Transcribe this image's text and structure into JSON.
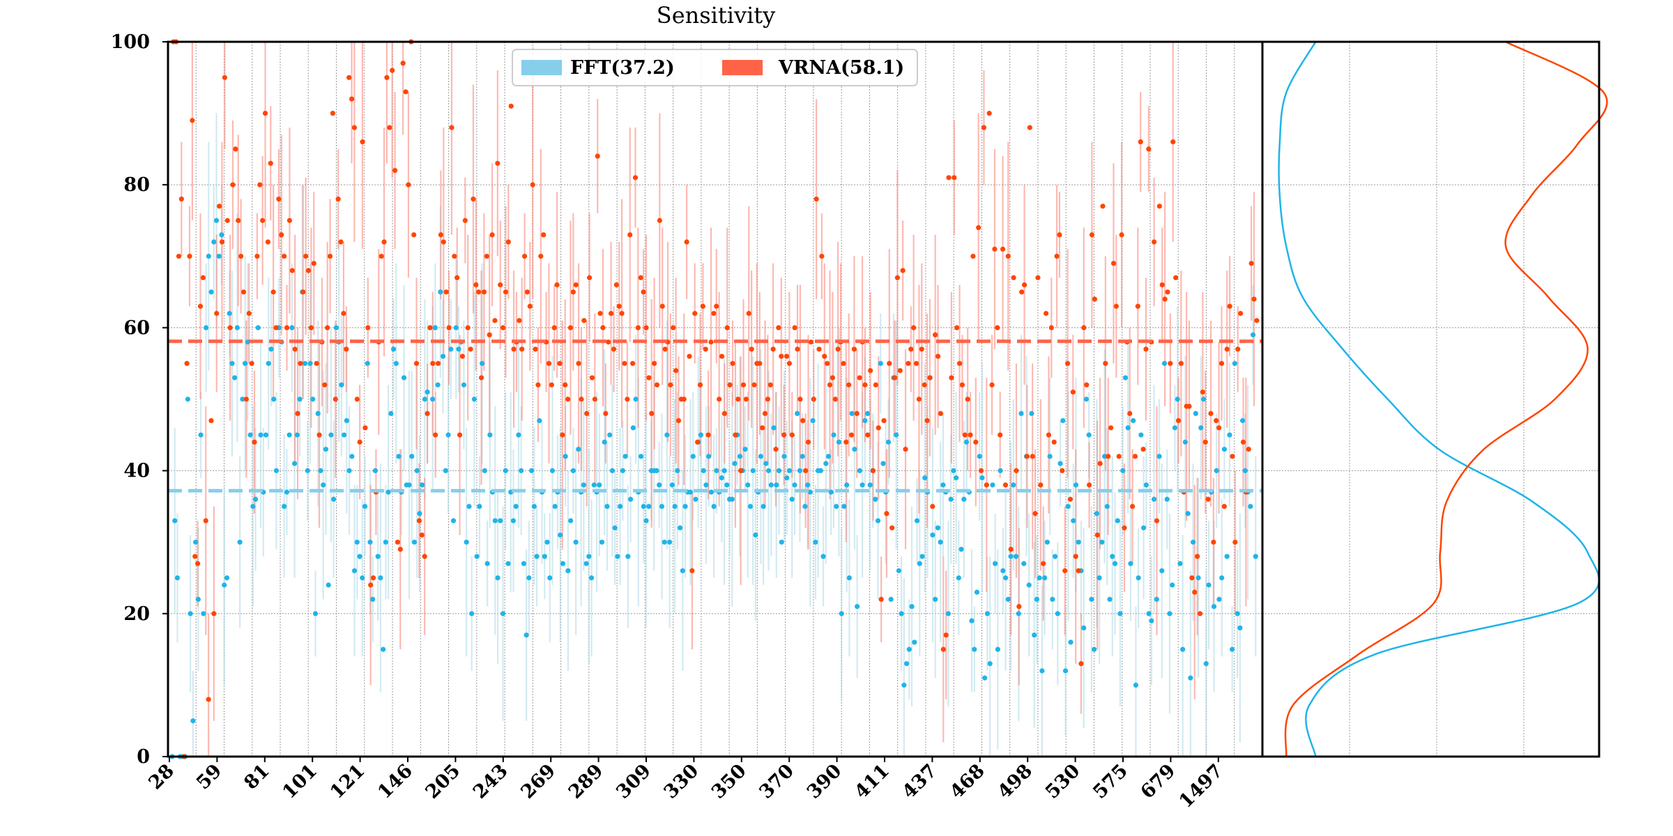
{
  "chart_data": {
    "type": "scatter",
    "title": "Sensitivity",
    "xlabel": "",
    "ylabel": "",
    "ylim": [
      0,
      100
    ],
    "yticks": [
      0,
      20,
      40,
      60,
      80,
      100
    ],
    "x_tick_labels": [
      "28",
      "59",
      "81",
      "101",
      "121",
      "146",
      "205",
      "243",
      "269",
      "289",
      "309",
      "330",
      "350",
      "370",
      "390",
      "411",
      "437",
      "468",
      "498",
      "530",
      "575",
      "679",
      "1497"
    ],
    "grid": true,
    "legend_position": "top-center",
    "series": [
      {
        "name": "FFT(37.2)",
        "color": "#1fb4e8",
        "legend_color": "#87ceeb",
        "mean": 37.2,
        "profile": [
          0,
          33,
          25,
          0,
          0,
          0,
          50,
          20,
          5,
          30,
          22,
          45,
          20,
          60,
          70,
          65,
          72,
          75,
          70,
          73,
          24,
          25,
          62,
          55,
          53,
          60,
          30,
          50,
          55,
          58,
          45,
          35,
          36,
          60,
          45,
          37,
          45,
          55,
          57,
          50,
          40,
          60,
          58,
          35,
          37,
          45,
          60,
          41,
          45,
          50,
          65,
          55,
          40,
          55,
          50,
          20,
          48,
          40,
          38,
          43,
          24,
          45,
          36,
          60,
          58,
          52,
          45,
          47,
          40,
          42,
          26,
          30,
          28,
          25,
          35,
          55,
          30,
          22,
          40,
          28,
          25,
          15,
          30,
          37,
          48,
          57,
          55,
          42,
          37,
          53,
          38,
          38,
          42,
          30,
          40,
          34,
          38,
          50,
          51,
          60,
          50,
          60,
          52,
          65,
          56,
          40,
          45,
          57,
          33,
          60,
          57,
          58,
          52,
          30,
          35,
          20,
          50,
          28,
          35,
          55,
          40,
          27,
          45,
          37,
          33,
          25,
          33,
          20,
          40,
          27,
          37,
          33,
          35,
          45,
          40,
          27,
          17,
          25,
          40,
          35,
          28,
          47,
          37,
          28,
          30,
          25,
          40,
          35,
          37,
          31,
          27,
          42,
          26,
          33,
          40,
          30,
          43,
          37,
          38,
          27,
          28,
          25,
          38,
          37,
          38,
          30,
          44,
          35,
          45,
          40,
          32,
          28,
          35,
          40,
          42,
          28,
          36,
          46,
          50,
          37,
          42,
          35,
          33,
          35,
          40,
          40,
          40,
          38,
          35,
          30,
          45,
          30,
          38,
          35,
          40,
          32,
          26,
          35,
          37,
          37,
          42,
          36,
          44,
          45,
          40,
          38,
          42,
          37,
          35,
          40,
          37,
          39,
          40,
          38,
          36,
          36,
          41,
          45,
          42,
          40,
          43,
          38,
          35,
          40,
          31,
          37,
          42,
          35,
          41,
          40,
          38,
          46,
          38,
          40,
          30,
          42,
          39,
          40,
          36,
          38,
          48,
          40,
          42,
          35,
          38,
          37,
          47,
          30,
          40,
          40,
          28,
          41,
          42,
          37,
          45,
          35,
          44,
          20,
          35,
          38,
          25,
          48,
          43,
          21,
          40,
          38,
          47,
          48,
          38,
          40,
          36,
          33,
          55,
          41,
          37,
          44,
          22,
          53,
          45,
          26,
          20,
          10,
          13,
          15,
          21,
          16,
          33,
          27,
          28,
          39,
          37,
          53,
          31,
          22,
          32,
          30,
          38,
          37,
          20,
          36,
          40,
          39,
          25,
          29,
          36,
          44,
          37,
          19,
          15,
          23,
          42,
          39,
          11,
          20,
          13,
          38,
          27,
          15,
          40,
          26,
          25,
          22,
          28,
          38,
          28,
          20,
          48,
          27,
          42,
          24,
          48,
          17,
          22,
          25,
          12,
          25,
          30,
          42,
          22,
          28,
          20,
          41,
          47,
          12,
          35,
          16,
          33,
          38,
          30,
          26,
          18,
          50,
          45,
          22,
          15,
          34,
          25,
          30,
          42,
          35,
          22,
          28,
          27,
          33,
          20,
          40,
          53,
          46,
          27,
          47,
          10,
          25,
          45,
          32,
          38,
          20,
          19,
          36,
          22,
          42,
          26,
          55,
          36,
          20,
          24,
          46,
          50,
          27,
          15,
          44,
          34,
          11,
          30,
          48,
          25,
          46,
          50,
          13,
          24,
          37,
          21,
          40,
          22,
          25,
          43,
          28,
          45,
          15,
          55,
          20,
          18,
          47,
          40,
          37,
          35,
          59,
          28
        ]
      },
      {
        "name": "VRNA(58.1)",
        "color": "#ff4500",
        "legend_color": "#ff6347",
        "mean": 58.1,
        "profile": [
          100,
          100,
          70,
          78,
          0,
          55,
          70,
          89,
          28,
          27,
          63,
          67,
          33,
          8,
          47,
          20,
          62,
          77,
          72,
          95,
          75,
          60,
          80,
          85,
          75,
          70,
          65,
          50,
          62,
          55,
          44,
          70,
          80,
          75,
          90,
          72,
          83,
          65,
          60,
          78,
          73,
          70,
          60,
          75,
          68,
          57,
          48,
          55,
          65,
          70,
          68,
          60,
          69,
          55,
          45,
          58,
          52,
          60,
          70,
          90,
          50,
          78,
          72,
          62,
          57,
          95,
          92,
          88,
          50,
          44,
          86,
          46,
          60,
          24,
          25,
          37,
          58,
          70,
          72,
          95,
          88,
          96,
          82,
          30,
          29,
          97,
          93,
          80,
          100,
          73,
          55,
          33,
          31,
          28,
          48,
          60,
          55,
          45,
          55,
          73,
          72,
          65,
          60,
          88,
          70,
          67,
          45,
          56,
          75,
          60,
          57,
          78,
          66,
          65,
          53,
          65,
          70,
          59,
          73,
          61,
          83,
          66,
          60,
          65,
          72,
          91,
          57,
          58,
          61,
          57,
          70,
          65,
          63,
          80,
          57,
          52,
          70,
          73,
          58,
          55,
          52,
          60,
          66,
          55,
          45,
          52,
          50,
          60,
          65,
          66,
          55,
          50,
          61,
          48,
          67,
          53,
          50,
          84,
          62,
          60,
          48,
          58,
          62,
          57,
          66,
          63,
          62,
          55,
          50,
          73,
          55,
          81,
          60,
          67,
          65,
          60,
          53,
          48,
          55,
          52,
          75,
          63,
          57,
          58,
          52,
          60,
          54,
          47,
          50,
          50,
          72,
          56,
          26,
          62,
          44,
          52,
          63,
          57,
          45,
          58,
          62,
          63,
          50,
          56,
          48,
          60,
          52,
          55,
          45,
          50,
          40,
          52,
          50,
          62,
          57,
          52,
          55,
          55,
          46,
          48,
          50,
          52,
          57,
          43,
          60,
          56,
          45,
          56,
          55,
          45,
          60,
          57,
          50,
          47,
          40,
          44,
          58,
          50,
          78,
          57,
          70,
          56,
          55,
          52,
          53,
          50,
          57,
          58,
          55,
          44,
          52,
          45,
          57,
          48,
          53,
          58,
          52,
          45,
          54,
          40,
          52,
          46,
          22,
          47,
          34,
          55,
          32,
          53,
          67,
          54,
          68,
          43,
          55,
          57,
          60,
          55,
          50,
          57,
          52,
          47,
          53,
          35,
          59,
          56,
          48,
          15,
          17,
          81,
          53,
          81,
          60,
          55,
          52,
          45,
          50,
          45,
          70,
          44,
          74,
          40,
          88,
          38,
          90,
          52,
          71,
          60,
          45,
          71,
          38,
          70,
          29,
          67,
          40,
          21,
          65,
          66,
          42,
          88,
          42,
          34,
          67,
          38,
          27,
          62,
          45,
          60,
          44,
          70,
          73,
          40,
          26,
          55,
          36,
          51,
          28,
          26,
          13,
          60,
          52,
          38,
          73,
          64,
          31,
          41,
          77,
          55,
          42,
          46,
          69,
          63,
          42,
          73,
          32,
          58,
          48,
          35,
          42,
          63,
          86,
          43,
          57,
          85,
          58,
          72,
          33,
          77,
          66,
          64,
          65,
          55,
          86,
          67,
          47,
          55,
          37,
          49,
          49,
          25,
          23,
          28,
          20,
          51,
          44,
          36,
          48,
          30,
          47,
          46,
          55,
          35,
          57,
          63,
          42,
          30,
          57,
          62,
          44,
          37,
          43,
          69,
          64,
          61
        ]
      }
    ],
    "right_panel": {
      "type": "density",
      "series": [
        {
          "name": "FFT(37.2)",
          "density": [
            0.12,
            0.1,
            0.3,
            0.92,
            0.95,
            0.78,
            0.5,
            0.34,
            0.2,
            0.08,
            0.03,
            0.01,
            0.01,
            0.03,
            0.12
          ]
        },
        {
          "name": "VRNA(58.1)",
          "density": [
            0.03,
            0.05,
            0.25,
            0.48,
            0.5,
            0.52,
            0.63,
            0.85,
            0.95,
            0.83,
            0.7,
            0.78,
            0.92,
            1.0,
            0.7
          ]
        }
      ]
    }
  }
}
